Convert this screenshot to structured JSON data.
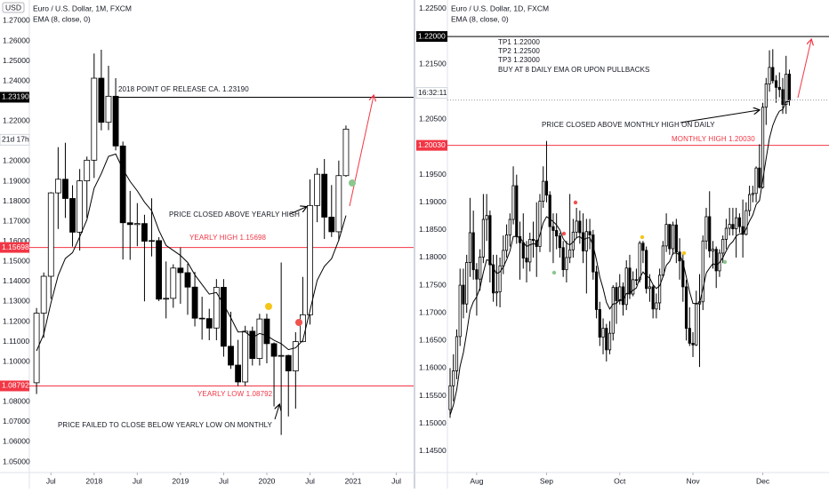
{
  "chart_data": [
    {
      "type": "candlestick",
      "title": "Euro / U.S. Dollar, 1M, FXCM",
      "indicator": "EMA (8, close, 0)",
      "currency": "USD",
      "color_up": "#ffffff",
      "color_down": "#000000",
      "ema_color": "#000000",
      "open": [
        1.0895,
        1.1242,
        1.1426,
        1.1842,
        1.191,
        1.1814,
        1.1646,
        1.1902,
        1.2005,
        1.2414,
        1.2194,
        1.2324,
        1.2076,
        1.1693,
        1.1684,
        1.1689,
        1.1601,
        1.1604,
        1.1312,
        1.1316,
        1.1467,
        1.1444,
        1.1372,
        1.1217,
        1.1215,
        1.1168,
        1.1371,
        1.1077,
        1.0983,
        1.0899,
        1.1152,
        1.1016,
        1.1213,
        1.109,
        1.1027,
        1.1031,
        1.0954,
        1.11,
        1.1234,
        1.1779,
        1.1935,
        1.1721,
        1.1648,
        1.1928
      ],
      "high": [
        1.1268,
        1.1445,
        1.1846,
        1.207,
        1.2092,
        1.188,
        1.1961,
        1.2023,
        1.2537,
        1.2556,
        1.2476,
        1.2414,
        1.2098,
        1.1852,
        1.1791,
        1.1733,
        1.1815,
        1.1621,
        1.15,
        1.1486,
        1.157,
        1.1489,
        1.1448,
        1.1324,
        1.1264,
        1.1412,
        1.1412,
        1.1249,
        1.1109,
        1.1179,
        1.1175,
        1.1239,
        1.1239,
        1.1096,
        1.1495,
        1.1035,
        1.1147,
        1.1423,
        1.1909,
        1.1966,
        1.2011,
        1.1881,
        1.2003,
        1.2178
      ],
      "low": [
        1.0839,
        1.1119,
        1.1313,
        1.1662,
        1.1717,
        1.1574,
        1.1554,
        1.1717,
        1.1916,
        1.2154,
        1.2155,
        1.2054,
        1.151,
        1.1508,
        1.1576,
        1.1301,
        1.1525,
        1.1302,
        1.1216,
        1.1269,
        1.1289,
        1.1234,
        1.1176,
        1.111,
        1.1107,
        1.1107,
        1.1025,
        1.0964,
        1.0879,
        1.0879,
        1.0981,
        1.0981,
        1.0992,
        1.0777,
        1.0635,
        1.0727,
        1.0766,
        1.1097,
        1.1185,
        1.1696,
        1.1612,
        1.1622,
        1.1603,
        1.1922
      ],
      "close": [
        1.1242,
        1.1426,
        1.1842,
        1.191,
        1.1814,
        1.1646,
        1.1902,
        1.2005,
        1.2414,
        1.2194,
        1.2324,
        1.2076,
        1.1693,
        1.1684,
        1.1689,
        1.1601,
        1.1604,
        1.1312,
        1.1316,
        1.1467,
        1.1444,
        1.1372,
        1.1217,
        1.1215,
        1.1168,
        1.1371,
        1.1077,
        1.0983,
        1.0899,
        1.1152,
        1.1016,
        1.1213,
        1.109,
        1.1027,
        1.1031,
        1.0954,
        1.11,
        1.1234,
        1.1779,
        1.1935,
        1.1721,
        1.1648,
        1.1928,
        1.216
      ],
      "ema": [
        1.1054,
        1.1137,
        1.1293,
        1.143,
        1.1515,
        1.1544,
        1.1623,
        1.1708,
        1.1865,
        1.1938,
        1.2024,
        1.2036,
        1.196,
        1.1899,
        1.1852,
        1.1796,
        1.1753,
        1.1655,
        1.158,
        1.1555,
        1.153,
        1.1495,
        1.1433,
        1.1385,
        1.1337,
        1.1345,
        1.1286,
        1.1219,
        1.1148,
        1.1149,
        1.112,
        1.1141,
        1.113,
        1.1107,
        1.109,
        1.106,
        1.1069,
        1.1106,
        1.1255,
        1.1406,
        1.1476,
        1.1514,
        1.1606,
        1.1729
      ],
      "xlim": [
        -1,
        52.4
      ],
      "xticks": [
        {
          "value": 2,
          "label": "Jul"
        },
        {
          "value": 8,
          "label": "2018"
        },
        {
          "value": 14,
          "label": "Jul"
        },
        {
          "value": 20,
          "label": "2019"
        },
        {
          "value": 26,
          "label": "Jul"
        },
        {
          "value": 32,
          "label": "2020"
        },
        {
          "value": 38,
          "label": "Jul"
        },
        {
          "value": 44,
          "label": "2021"
        },
        {
          "value": 50,
          "label": "Jul"
        }
      ],
      "ylim": [
        1.0447,
        1.2804
      ],
      "yticks": [
        {
          "value": 1.27,
          "label": "1.27000"
        },
        {
          "value": 1.26,
          "label": "1.26000"
        },
        {
          "value": 1.25,
          "label": "1.25000"
        },
        {
          "value": 1.24,
          "label": "1.24000"
        },
        {
          "value": 1.22,
          "label": "1.22000"
        },
        {
          "value": 1.2,
          "label": "1.20000"
        },
        {
          "value": 1.19,
          "label": "1.19000"
        },
        {
          "value": 1.18,
          "label": "1.18000"
        },
        {
          "value": 1.17,
          "label": "1.17000"
        },
        {
          "value": 1.16,
          "label": "1.16000"
        },
        {
          "value": 1.15,
          "label": "1.15000"
        },
        {
          "value": 1.14,
          "label": "1.14000"
        },
        {
          "value": 1.13,
          "label": "1.13000"
        },
        {
          "value": 1.12,
          "label": "1.12000"
        },
        {
          "value": 1.11,
          "label": "1.11000"
        },
        {
          "value": 1.1,
          "label": "1.10000"
        },
        {
          "value": 1.08,
          "label": "1.08000"
        },
        {
          "value": 1.07,
          "label": "1.07000"
        },
        {
          "value": 1.06,
          "label": "1.06000"
        },
        {
          "value": 1.05,
          "label": "1.05000"
        }
      ],
      "grid": false,
      "levels": [
        {
          "value": 1.2319,
          "label": "1.23190",
          "color": "#000000"
        },
        {
          "value": 1.15698,
          "label": "1.15698",
          "color": "#f23645"
        },
        {
          "value": 1.08792,
          "label": "1.08792",
          "color": "#f23645"
        }
      ],
      "countdown": "21d 17h",
      "annotations": [
        {
          "text": "2018 POINT OF RELEASE CA. 1.23190",
          "color": "#131722"
        },
        {
          "text": "PRICE CLOSED ABOVE YEARLY HIGH",
          "color": "#131722"
        },
        {
          "text": "YEARLY HIGH 1.15698",
          "color": "#f23645"
        },
        {
          "text": "YEARLY LOW 1.08792",
          "color": "#f23645"
        },
        {
          "text": "PRICE FAILED TO CLOSE BELOW YEARLY LOW ON MONTHLY",
          "color": "#131722"
        }
      ]
    },
    {
      "type": "candlestick",
      "title": "Euro / U.S. Dollar, 1D, FXCM",
      "indicator": "EMA (8, close, 0)",
      "color_up": "#ffffff",
      "color_down": "#000000",
      "ema_color": "#000000",
      "open": [
        1.1525,
        1.1568,
        1.1595,
        1.1657,
        1.175,
        1.1716,
        1.1791,
        1.1845,
        1.1778,
        1.1761,
        1.1801,
        1.1869,
        1.1876,
        1.1787,
        1.1736,
        1.1738,
        1.1785,
        1.1813,
        1.1841,
        1.1869,
        1.193,
        1.1838,
        1.1827,
        1.1799,
        1.1792,
        1.1833,
        1.1831,
        1.182,
        1.1902,
        1.1938,
        1.1913,
        1.1856,
        1.1849,
        1.1839,
        1.1818,
        1.1778,
        1.18,
        1.1814,
        1.1846,
        1.1866,
        1.1845,
        1.1812,
        1.1847,
        1.1841,
        1.1774,
        1.1706,
        1.1656,
        1.1672,
        1.1633,
        1.1663,
        1.1746,
        1.1722,
        1.1747,
        1.1715,
        1.1781,
        1.1734,
        1.176,
        1.176,
        1.1826,
        1.1813,
        1.1744,
        1.1747,
        1.1707,
        1.1718,
        1.1768,
        1.1821,
        1.186,
        1.1816,
        1.1859,
        1.181,
        1.1794,
        1.1747,
        1.1672,
        1.1645,
        1.1642,
        1.1716,
        1.172,
        1.183,
        1.1874,
        1.1812,
        1.1815,
        1.1776,
        1.1808,
        1.1833,
        1.1853,
        1.186,
        1.1852,
        1.1872,
        1.1856,
        1.1842,
        1.1885,
        1.1914,
        1.1916,
        1.1962,
        1.1927,
        1.2072,
        1.2114,
        1.2144,
        1.212,
        1.2108,
        1.2104,
        1.2077,
        1.2132
      ],
      "high": [
        1.16,
        1.1625,
        1.167,
        1.178,
        1.178,
        1.1805,
        1.1908,
        1.1885,
        1.179,
        1.1815,
        1.1915,
        1.1915,
        1.1885,
        1.1805,
        1.1805,
        1.18,
        1.184,
        1.186,
        1.188,
        1.1965,
        1.195,
        1.1865,
        1.188,
        1.183,
        1.1845,
        1.1865,
        1.19,
        1.1915,
        1.1965,
        1.2011,
        1.192,
        1.188,
        1.188,
        1.1845,
        1.183,
        1.183,
        1.1915,
        1.187,
        1.189,
        1.1885,
        1.188,
        1.187,
        1.187,
        1.185,
        1.1785,
        1.172,
        1.169,
        1.168,
        1.1685,
        1.175,
        1.1755,
        1.177,
        1.1755,
        1.1795,
        1.1805,
        1.1775,
        1.178,
        1.183,
        1.183,
        1.182,
        1.177,
        1.175,
        1.1735,
        1.178,
        1.183,
        1.188,
        1.186,
        1.1865,
        1.187,
        1.1835,
        1.181,
        1.176,
        1.171,
        1.1665,
        1.174,
        1.177,
        1.184,
        1.189,
        1.192,
        1.183,
        1.182,
        1.1815,
        1.184,
        1.187,
        1.189,
        1.189,
        1.189,
        1.188,
        1.1905,
        1.19,
        1.193,
        1.193,
        1.1965,
        1.2005,
        1.208,
        1.2125,
        1.2175,
        1.2177,
        1.213,
        1.2135,
        1.2125,
        1.2165,
        1.214
      ],
      "low": [
        1.151,
        1.154,
        1.158,
        1.164,
        1.169,
        1.17,
        1.1765,
        1.176,
        1.1695,
        1.174,
        1.179,
        1.183,
        1.1755,
        1.172,
        1.1712,
        1.171,
        1.177,
        1.18,
        1.182,
        1.186,
        1.1825,
        1.176,
        1.178,
        1.1755,
        1.1775,
        1.18,
        1.1765,
        1.181,
        1.189,
        1.19,
        1.181,
        1.179,
        1.1815,
        1.18,
        1.1765,
        1.1755,
        1.179,
        1.18,
        1.1835,
        1.1825,
        1.179,
        1.1735,
        1.1815,
        1.176,
        1.169,
        1.164,
        1.1625,
        1.1612,
        1.1625,
        1.165,
        1.168,
        1.1715,
        1.1695,
        1.1705,
        1.1725,
        1.173,
        1.175,
        1.1755,
        1.179,
        1.1735,
        1.172,
        1.169,
        1.169,
        1.1705,
        1.1765,
        1.181,
        1.1805,
        1.1805,
        1.179,
        1.176,
        1.172,
        1.165,
        1.164,
        1.162,
        1.164,
        1.1602,
        1.1705,
        1.1815,
        1.18,
        1.178,
        1.1745,
        1.1765,
        1.179,
        1.1815,
        1.184,
        1.184,
        1.18,
        1.1845,
        1.18,
        1.184,
        1.1875,
        1.19,
        1.19,
        1.1925,
        1.1925,
        1.204,
        1.21,
        1.2115,
        1.208,
        1.209,
        1.206,
        1.206,
        1.2075
      ],
      "close": [
        1.1568,
        1.1595,
        1.1657,
        1.175,
        1.1716,
        1.1791,
        1.1845,
        1.1778,
        1.1761,
        1.1801,
        1.1869,
        1.1876,
        1.1787,
        1.1736,
        1.1738,
        1.1785,
        1.1813,
        1.1841,
        1.1869,
        1.193,
        1.1838,
        1.1827,
        1.1799,
        1.1792,
        1.1833,
        1.1831,
        1.182,
        1.1902,
        1.1938,
        1.1913,
        1.1856,
        1.1849,
        1.1839,
        1.1818,
        1.1778,
        1.18,
        1.1814,
        1.1846,
        1.1866,
        1.1845,
        1.1812,
        1.1847,
        1.1841,
        1.1774,
        1.1706,
        1.1656,
        1.1672,
        1.1633,
        1.1663,
        1.1746,
        1.1722,
        1.1747,
        1.1715,
        1.1781,
        1.1734,
        1.176,
        1.176,
        1.1826,
        1.1813,
        1.1744,
        1.1747,
        1.1707,
        1.1718,
        1.1768,
        1.1821,
        1.186,
        1.1816,
        1.1859,
        1.181,
        1.1794,
        1.1747,
        1.1672,
        1.1645,
        1.1642,
        1.1716,
        1.172,
        1.183,
        1.1874,
        1.1812,
        1.1815,
        1.1776,
        1.1808,
        1.1833,
        1.1853,
        1.186,
        1.1852,
        1.1872,
        1.1856,
        1.1842,
        1.1885,
        1.1914,
        1.1916,
        1.1962,
        1.1927,
        1.2072,
        1.2114,
        1.2144,
        1.212,
        1.2108,
        1.2104,
        1.2077,
        1.2132,
        1.2085
      ],
      "ema": [
        1.1515,
        1.1533,
        1.1561,
        1.1603,
        1.1628,
        1.1664,
        1.1704,
        1.172,
        1.1729,
        1.1745,
        1.1773,
        1.1796,
        1.1794,
        1.1781,
        1.1771,
        1.1774,
        1.1783,
        1.1796,
        1.1812,
        1.1838,
        1.1838,
        1.1836,
        1.1828,
        1.182,
        1.1823,
        1.1825,
        1.1824,
        1.1841,
        1.1863,
        1.1874,
        1.187,
        1.1865,
        1.1859,
        1.185,
        1.1834,
        1.1826,
        1.1823,
        1.1828,
        1.1836,
        1.1838,
        1.1832,
        1.1835,
        1.1836,
        1.1822,
        1.1796,
        1.1765,
        1.1744,
        1.1719,
        1.1707,
        1.1716,
        1.1717,
        1.1724,
        1.1722,
        1.1735,
        1.1735,
        1.1741,
        1.1745,
        1.1763,
        1.1774,
        1.1767,
        1.1763,
        1.1751,
        1.1744,
        1.1749,
        1.1765,
        1.1786,
        1.1793,
        1.1808,
        1.1808,
        1.1805,
        1.1792,
        1.1765,
        1.1738,
        1.1717,
        1.1717,
        1.1718,
        1.1743,
        1.1772,
        1.1781,
        1.1789,
        1.1786,
        1.1791,
        1.18,
        1.1812,
        1.1823,
        1.1829,
        1.1839,
        1.1843,
        1.1843,
        1.1852,
        1.1866,
        1.1877,
        1.1896,
        1.1903,
        1.1941,
        1.1979,
        1.2016,
        1.2039,
        1.2054,
        1.2065,
        1.2068,
        1.2082,
        1.2082
      ],
      "xlim": [
        -0.8,
        113.9
      ],
      "xticks": [
        {
          "value": 8,
          "label": "Aug"
        },
        {
          "value": 29,
          "label": "Sep"
        },
        {
          "value": 51,
          "label": "Oct"
        },
        {
          "value": 73,
          "label": "Nov"
        },
        {
          "value": 94,
          "label": "Dec"
        }
      ],
      "ylim": [
        1.1411,
        1.2266
      ],
      "yticks": [
        {
          "value": 1.225,
          "label": "1.22500"
        },
        {
          "value": 1.215,
          "label": "1.21500"
        },
        {
          "value": 1.205,
          "label": "1.20500"
        },
        {
          "value": 1.195,
          "label": "1.19500"
        },
        {
          "value": 1.19,
          "label": "1.19000"
        },
        {
          "value": 1.185,
          "label": "1.18500"
        },
        {
          "value": 1.18,
          "label": "1.18000"
        },
        {
          "value": 1.175,
          "label": "1.17500"
        },
        {
          "value": 1.17,
          "label": "1.17000"
        },
        {
          "value": 1.165,
          "label": "1.16500"
        },
        {
          "value": 1.16,
          "label": "1.16000"
        },
        {
          "value": 1.155,
          "label": "1.15500"
        },
        {
          "value": 1.15,
          "label": "1.15000"
        },
        {
          "value": 1.145,
          "label": "1.14500"
        }
      ],
      "grid": false,
      "levels": [
        {
          "value": 1.22,
          "label": "1.22000",
          "color": "#000000"
        },
        {
          "value": 1.2003,
          "label": "1.20030",
          "color": "#f23645"
        }
      ],
      "countdown": "16:32:11",
      "annotations": [
        {
          "text": "TP1 1.22000",
          "color": "#131722"
        },
        {
          "text": "TP2 1.22500",
          "color": "#131722"
        },
        {
          "text": "TP3 1.23000",
          "color": "#131722"
        },
        {
          "text": "BUY AT 8 DAILY EMA OR UPON PULLBACKS",
          "color": "#131722"
        },
        {
          "text": "PRICE CLOSED ABOVE MONTHLY HIGH ON DAILY",
          "color": "#131722"
        },
        {
          "text": "MONTHLY HIGH 1.20030",
          "color": "#f23645"
        }
      ]
    }
  ]
}
